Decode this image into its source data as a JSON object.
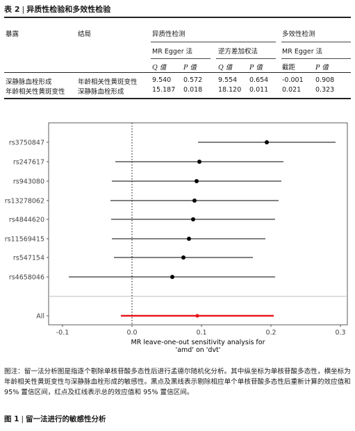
{
  "table": {
    "label": "表 2",
    "separator": "|",
    "title": "异质性检验和多效性检验",
    "headers": {
      "exposure": "暴露",
      "outcome": "结局",
      "heterogeneity": "异质性检测",
      "pleiotropy": "多效性检测",
      "mr_egger": "MR Egger 法",
      "ivw": "逆方差加权法",
      "mr_egger2": "MR Egger 法",
      "q": "Q 值",
      "p": "P 值",
      "q2": "Q 值",
      "p2": "P 值",
      "intercept": "截距",
      "p3": "P 值"
    },
    "rows": [
      {
        "exposure": "深静脉血栓形成",
        "outcome": "年龄相关性黄斑变性",
        "eq": "9.540",
        "ep": "0.572",
        "iq": "9.554",
        "ip": "0.654",
        "int": "-0.001",
        "pp": "0.908"
      },
      {
        "exposure": "年龄相关性黄斑变性",
        "outcome": "深静脉血栓形成",
        "eq": "15.187",
        "ep": "0.018",
        "iq": "18.120",
        "ip": "0.011",
        "int": "0.021",
        "pp": "0.323"
      }
    ]
  },
  "chart_data": {
    "type": "scatter",
    "subtype": "forest",
    "categories": [
      "rs3750847",
      "rs247617",
      "rs943080",
      "rs13278062",
      "rs4844620",
      "rs11569415",
      "rs547154",
      "rs4658046",
      "All"
    ],
    "estimates": [
      0.194,
      0.097,
      0.093,
      0.09,
      0.088,
      0.082,
      0.074,
      0.058,
      0.094
    ],
    "lower": [
      0.095,
      -0.024,
      -0.029,
      -0.031,
      -0.03,
      -0.029,
      -0.026,
      -0.091,
      -0.016
    ],
    "upper": [
      0.293,
      0.218,
      0.215,
      0.211,
      0.206,
      0.192,
      0.174,
      0.206,
      0.204
    ],
    "highlight": "All",
    "highlight_color": "#e8161b",
    "point_color": "#000000",
    "xlim": [
      -0.12,
      0.31
    ],
    "xticks": [
      "-0.1",
      "0.0",
      "0.1",
      "0.2",
      "0.3"
    ],
    "xtick_values": [
      -0.1,
      0.0,
      0.1,
      0.2,
      0.3
    ],
    "xlabel_line1": "MR leave-one-out sensitivity analysis for",
    "xlabel_line2": "'amd' on 'dvt'",
    "reference_line": 0,
    "grid": false
  },
  "caption": {
    "text": "图注：留一法分析图是指逐个剔除单核苷酸多态性后进行孟德尔随机化分析。其中纵坐标为单核苷酸多态性，横坐标为年龄相关性黄斑变性与深静脉血栓形成的敏感性。黑点及黑线表示剔除相应单个单核苷酸多态性后重新计算的效应值和 95% 置信区间，红点及红线表示总的效应值和 95% 置信区间。"
  },
  "figure": {
    "label": "图 1",
    "separator": "|",
    "title": "留一法进行的敏感性分析"
  }
}
